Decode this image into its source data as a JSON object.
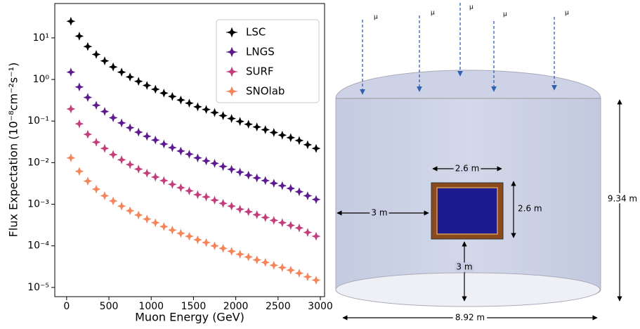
{
  "chart_data": {
    "type": "scatter",
    "x_label": "Muon Energy (GeV)",
    "y_label": "Flux Expectation (10⁻⁸cm⁻²s⁻¹)",
    "x": [
      50,
      150,
      250,
      350,
      450,
      550,
      650,
      750,
      850,
      950,
      1050,
      1150,
      1250,
      1350,
      1450,
      1550,
      1650,
      1750,
      1850,
      1950,
      2050,
      2150,
      2250,
      2350,
      2450,
      2550,
      2650,
      2750,
      2850,
      2950
    ],
    "series": [
      {
        "name": "LSC",
        "color": "#000000",
        "values": [
          25,
          11,
          6.2,
          4.0,
          2.8,
          2.0,
          1.5,
          1.15,
          0.9,
          0.72,
          0.58,
          0.47,
          0.39,
          0.32,
          0.27,
          0.22,
          0.19,
          0.16,
          0.135,
          0.115,
          0.098,
          0.084,
          0.072,
          0.062,
          0.053,
          0.046,
          0.04,
          0.034,
          0.027,
          0.022
        ]
      },
      {
        "name": "LNGS",
        "color": "#5c1a8e",
        "values": [
          1.5,
          0.66,
          0.37,
          0.24,
          0.17,
          0.12,
          0.09,
          0.069,
          0.054,
          0.043,
          0.035,
          0.028,
          0.023,
          0.019,
          0.016,
          0.013,
          0.011,
          0.0096,
          0.0081,
          0.0069,
          0.0059,
          0.005,
          0.0043,
          0.0037,
          0.0032,
          0.0028,
          0.0024,
          0.002,
          0.0016,
          0.0013
        ]
      },
      {
        "name": "SURF",
        "color": "#c23f7b",
        "values": [
          0.195,
          0.086,
          0.048,
          0.031,
          0.022,
          0.0156,
          0.0117,
          0.009,
          0.007,
          0.0056,
          0.0045,
          0.0037,
          0.003,
          0.0025,
          0.0021,
          0.0017,
          0.0015,
          0.00125,
          0.00105,
          0.0009,
          0.00076,
          0.00066,
          0.00056,
          0.00048,
          0.00041,
          0.00036,
          0.00031,
          0.00027,
          0.00021,
          0.00017
        ]
      },
      {
        "name": "SNOlab",
        "color": "#f4845a",
        "values": [
          0.013,
          0.0062,
          0.0036,
          0.0023,
          0.0016,
          0.0012,
          0.0009,
          0.0007,
          0.00055,
          0.00044,
          0.00036,
          0.00029,
          0.00024,
          0.0002,
          0.00017,
          0.00014,
          0.00012,
          0.0001,
          8.7e-05,
          7.4e-05,
          6.3e-05,
          5.4e-05,
          4.6e-05,
          4e-05,
          3.4e-05,
          3e-05,
          2.6e-05,
          2.2e-05,
          1.8e-05,
          1.5e-05
        ]
      }
    ],
    "log_y": true,
    "legend": "upper right",
    "xlim": [
      -140,
      3050
    ],
    "xticks": [
      0,
      500,
      1000,
      1500,
      2000,
      2500,
      3000
    ],
    "ylim": [
      6e-06,
      67
    ],
    "yticks": [
      {
        "value": 10,
        "label": "10¹"
      },
      {
        "value": 1,
        "label": "10⁰"
      },
      {
        "value": 0.1,
        "label": "10⁻¹"
      },
      {
        "value": 0.01,
        "label": "10⁻²"
      },
      {
        "value": 0.001,
        "label": "10⁻³"
      },
      {
        "value": 0.0001,
        "label": "10⁻⁴"
      },
      {
        "value": 1e-05,
        "label": "10⁻⁵"
      }
    ]
  },
  "diagram": {
    "muons": [
      "μ",
      "μ",
      "μ",
      "μ",
      "μ"
    ],
    "detector_width": "2.6 m",
    "detector_height": "2.6 m",
    "side_distance": "3 m",
    "bottom_distance": "3 m",
    "cavern_height": "9.34 m",
    "cavern_width": "8.92 m"
  }
}
